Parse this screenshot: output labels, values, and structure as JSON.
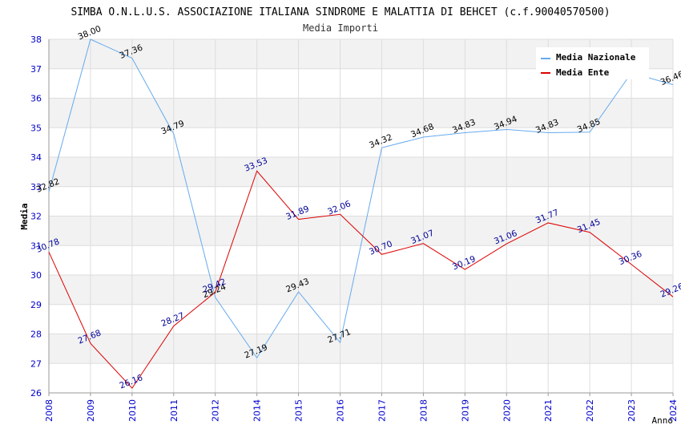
{
  "chart_data": {
    "type": "line",
    "title": "SIMBA O.N.L.U.S. ASSOCIAZIONE ITALIANA SINDROME E MALATTIA DI BEHCET (c.f.90040570500)",
    "subtitle": "Media Importi",
    "xlabel": "Anno",
    "ylabel": "Media",
    "ylim": [
      26,
      38
    ],
    "yticks": [
      "26",
      "27",
      "28",
      "29",
      "30",
      "31",
      "32",
      "33",
      "34",
      "35",
      "36",
      "37",
      "38"
    ],
    "x": [
      "2008",
      "2009",
      "2010",
      "2011",
      "2012",
      "2014",
      "2015",
      "2016",
      "2017",
      "2018",
      "2019",
      "2020",
      "2021",
      "2022",
      "2023",
      "2024"
    ],
    "grid": true,
    "legend_position": "top-right",
    "series": [
      {
        "name": "Media Nazionale",
        "color": "#66aaee",
        "label_color": "#000000",
        "values": [
          32.82,
          38.0,
          37.36,
          34.79,
          29.24,
          27.19,
          29.43,
          27.71,
          34.32,
          34.68,
          34.83,
          34.94,
          34.83,
          34.85,
          36.86,
          36.46
        ],
        "labels": [
          "32.82",
          "38.00",
          "37.36",
          "34.79",
          "29.24",
          "27.19",
          "29.43",
          "27.71",
          "34.32",
          "34.68",
          "34.83",
          "34.94",
          "34.83",
          "34.85",
          "",
          "36.46"
        ]
      },
      {
        "name": "Media Ente",
        "color": "#dd0000",
        "label_color": "#000099",
        "values": [
          30.78,
          27.68,
          26.16,
          28.27,
          29.42,
          33.53,
          31.89,
          32.06,
          30.7,
          31.07,
          30.19,
          31.06,
          31.77,
          31.45,
          30.36,
          29.26
        ],
        "labels": [
          "30.78",
          "27.68",
          "26.16",
          "28.27",
          "29.42",
          "33.53",
          "31.89",
          "32.06",
          "30.70",
          "31.07",
          "30.19",
          "31.06",
          "31.77",
          "31.45",
          "30.36",
          "29.26"
        ]
      }
    ]
  }
}
